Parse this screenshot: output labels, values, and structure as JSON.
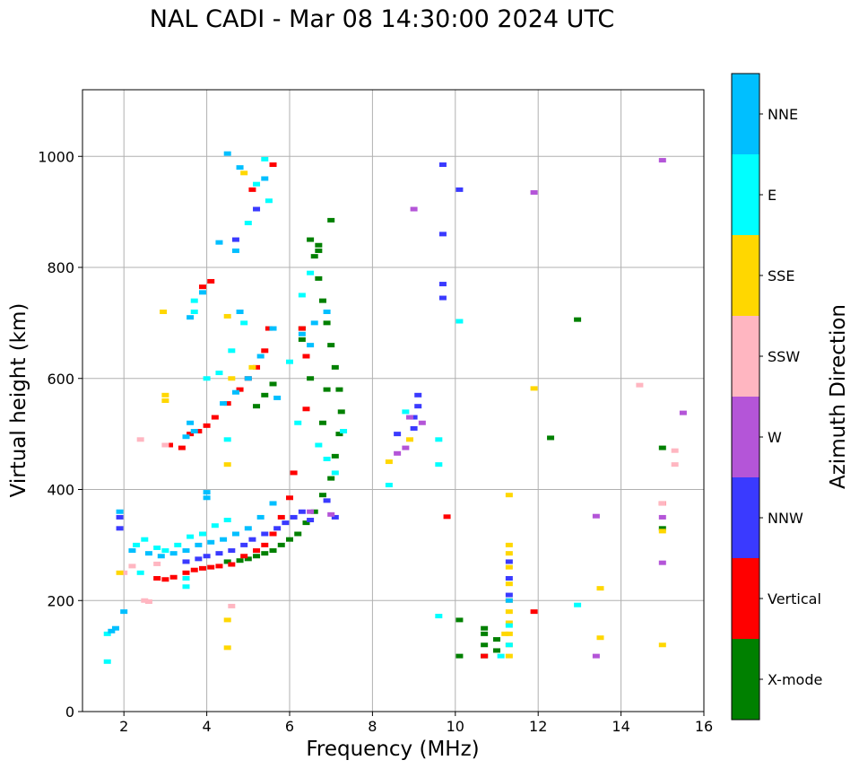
{
  "chart_data": {
    "type": "scatter",
    "title": "NAL CADI - Mar 08 14:30:00 2024 UTC",
    "xlabel": "Frequency (MHz)",
    "ylabel": "Virtual height (km)",
    "xlim": [
      1,
      16
    ],
    "ylim": [
      0,
      1120
    ],
    "xticks": [
      2,
      4,
      6,
      8,
      10,
      12,
      14,
      16
    ],
    "yticks": [
      0,
      200,
      400,
      600,
      800,
      1000
    ],
    "xtick_labels": [
      "2",
      "4",
      "6",
      "8",
      "10",
      "12",
      "14",
      "16"
    ],
    "ytick_labels": [
      "0",
      "200",
      "400",
      "600",
      "800",
      "1000"
    ],
    "grid": true,
    "colorbar": {
      "label": "Azimuth Direction",
      "categories": [
        {
          "name": "X-mode",
          "color": "#008000"
        },
        {
          "name": "Vertical",
          "color": "#ff0000"
        },
        {
          "name": "NNW",
          "color": "#3a3aff"
        },
        {
          "name": "W",
          "color": "#b455d8"
        },
        {
          "name": "SSW",
          "color": "#ffb6c1"
        },
        {
          "name": "SSE",
          "color": "#ffd700"
        },
        {
          "name": "E",
          "color": "#00ffff"
        },
        {
          "name": "NNE",
          "color": "#00bfff"
        }
      ]
    },
    "series": [
      {
        "name": "X-mode",
        "points": [
          [
            4.5,
            270
          ],
          [
            4.8,
            272
          ],
          [
            5.0,
            275
          ],
          [
            5.2,
            280
          ],
          [
            5.4,
            285
          ],
          [
            5.6,
            290
          ],
          [
            5.8,
            300
          ],
          [
            6.0,
            310
          ],
          [
            6.2,
            320
          ],
          [
            6.4,
            340
          ],
          [
            6.6,
            360
          ],
          [
            6.8,
            390
          ],
          [
            7.0,
            420
          ],
          [
            7.1,
            460
          ],
          [
            7.2,
            500
          ],
          [
            7.25,
            540
          ],
          [
            7.2,
            580
          ],
          [
            7.1,
            620
          ],
          [
            7.0,
            660
          ],
          [
            6.9,
            700
          ],
          [
            6.8,
            740
          ],
          [
            6.7,
            780
          ],
          [
            6.6,
            820
          ],
          [
            6.5,
            850
          ],
          [
            6.3,
            690
          ],
          [
            6.3,
            670
          ],
          [
            5.2,
            550
          ],
          [
            5.4,
            570
          ],
          [
            5.6,
            590
          ],
          [
            6.5,
            600
          ],
          [
            6.9,
            580
          ],
          [
            6.8,
            520
          ],
          [
            10.7,
            100
          ],
          [
            10.7,
            120
          ],
          [
            10.7,
            140
          ],
          [
            10.7,
            150
          ],
          [
            11.0,
            110
          ],
          [
            11.0,
            130
          ],
          [
            10.1,
            100
          ],
          [
            10.1,
            165
          ],
          [
            12.3,
            493
          ],
          [
            12.95,
            706
          ],
          [
            15.0,
            475
          ],
          [
            15.0,
            330
          ],
          [
            7.0,
            885
          ],
          [
            6.7,
            840
          ],
          [
            6.7,
            830
          ]
        ]
      },
      {
        "name": "Vertical",
        "points": [
          [
            2.8,
            240
          ],
          [
            3.0,
            238
          ],
          [
            3.2,
            242
          ],
          [
            3.5,
            250
          ],
          [
            3.7,
            255
          ],
          [
            3.9,
            258
          ],
          [
            4.1,
            260
          ],
          [
            4.3,
            262
          ],
          [
            4.6,
            265
          ],
          [
            4.9,
            280
          ],
          [
            5.2,
            290
          ],
          [
            5.4,
            300
          ],
          [
            5.6,
            320
          ],
          [
            5.8,
            350
          ],
          [
            6.0,
            385
          ],
          [
            6.1,
            430
          ],
          [
            3.6,
            500
          ],
          [
            3.8,
            505
          ],
          [
            4.0,
            515
          ],
          [
            4.2,
            530
          ],
          [
            4.5,
            555
          ],
          [
            4.8,
            580
          ],
          [
            5.0,
            600
          ],
          [
            5.2,
            620
          ],
          [
            5.4,
            650
          ],
          [
            5.5,
            690
          ],
          [
            4.1,
            775
          ],
          [
            3.9,
            765
          ],
          [
            3.1,
            480
          ],
          [
            3.4,
            475
          ],
          [
            5.1,
            940
          ],
          [
            6.4,
            545
          ],
          [
            6.4,
            640
          ],
          [
            6.3,
            690
          ],
          [
            10.7,
            100
          ],
          [
            11.9,
            180
          ],
          [
            15.0,
            375
          ],
          [
            9.8,
            351
          ],
          [
            5.6,
            985
          ]
        ]
      },
      {
        "name": "NNW",
        "points": [
          [
            1.9,
            350
          ],
          [
            1.9,
            330
          ],
          [
            3.5,
            270
          ],
          [
            3.8,
            275
          ],
          [
            4.0,
            280
          ],
          [
            4.3,
            285
          ],
          [
            4.6,
            290
          ],
          [
            4.9,
            300
          ],
          [
            5.1,
            310
          ],
          [
            5.4,
            320
          ],
          [
            5.7,
            330
          ],
          [
            5.9,
            340
          ],
          [
            6.1,
            350
          ],
          [
            6.3,
            360
          ],
          [
            6.9,
            380
          ],
          [
            9.1,
            570
          ],
          [
            9.1,
            550
          ],
          [
            9.0,
            530
          ],
          [
            8.6,
            500
          ],
          [
            9.0,
            510
          ],
          [
            10.1,
            940
          ],
          [
            9.7,
            985
          ],
          [
            9.7,
            860
          ],
          [
            9.7,
            770
          ],
          [
            9.7,
            745
          ],
          [
            6.5,
            345
          ],
          [
            7.1,
            350
          ],
          [
            4.7,
            850
          ],
          [
            5.2,
            905
          ],
          [
            11.3,
            210
          ],
          [
            11.3,
            240
          ],
          [
            11.3,
            270
          ]
        ]
      },
      {
        "name": "W",
        "points": [
          [
            9.0,
            905
          ],
          [
            8.9,
            530
          ],
          [
            9.2,
            520
          ],
          [
            8.6,
            465
          ],
          [
            8.8,
            475
          ],
          [
            13.4,
            352
          ],
          [
            13.4,
            100
          ],
          [
            15.0,
            993
          ],
          [
            15.0,
            268
          ],
          [
            15.0,
            350
          ],
          [
            15.5,
            538
          ],
          [
            11.9,
            935
          ],
          [
            7.0,
            355
          ],
          [
            6.5,
            360
          ]
        ]
      },
      {
        "name": "SSW",
        "points": [
          [
            2.5,
            200
          ],
          [
            2.6,
            198
          ],
          [
            2.4,
            490
          ],
          [
            2.0,
            250
          ],
          [
            3.0,
            480
          ],
          [
            14.45,
            588
          ],
          [
            15.3,
            470
          ],
          [
            15.3,
            445
          ],
          [
            15.0,
            375
          ],
          [
            4.6,
            190
          ],
          [
            2.2,
            262
          ],
          [
            2.8,
            266
          ]
        ]
      },
      {
        "name": "SSE",
        "points": [
          [
            3.0,
            570
          ],
          [
            3.0,
            560
          ],
          [
            2.95,
            720
          ],
          [
            4.5,
            445
          ],
          [
            4.5,
            165
          ],
          [
            4.5,
            115
          ],
          [
            4.5,
            712
          ],
          [
            4.6,
            600
          ],
          [
            8.4,
            450
          ],
          [
            8.9,
            490
          ],
          [
            11.3,
            390
          ],
          [
            11.3,
            300
          ],
          [
            11.3,
            285
          ],
          [
            11.3,
            260
          ],
          [
            11.3,
            230
          ],
          [
            11.3,
            200
          ],
          [
            11.3,
            180
          ],
          [
            11.3,
            160
          ],
          [
            11.3,
            140
          ],
          [
            11.3,
            120
          ],
          [
            11.3,
            100
          ],
          [
            11.2,
            140
          ],
          [
            11.9,
            582
          ],
          [
            13.5,
            222
          ],
          [
            13.5,
            133
          ],
          [
            15.0,
            120
          ],
          [
            15.0,
            325
          ],
          [
            1.9,
            250
          ],
          [
            5.1,
            620
          ],
          [
            4.9,
            970
          ]
        ]
      },
      {
        "name": "E",
        "points": [
          [
            1.6,
            140
          ],
          [
            2.3,
            300
          ],
          [
            2.5,
            310
          ],
          [
            2.8,
            295
          ],
          [
            3.0,
            290
          ],
          [
            3.3,
            300
          ],
          [
            3.6,
            315
          ],
          [
            3.9,
            320
          ],
          [
            4.2,
            335
          ],
          [
            4.5,
            345
          ],
          [
            2.4,
            250
          ],
          [
            3.5,
            240
          ],
          [
            3.7,
            720
          ],
          [
            3.7,
            740
          ],
          [
            4.0,
            600
          ],
          [
            4.3,
            610
          ],
          [
            4.6,
            650
          ],
          [
            4.9,
            700
          ],
          [
            5.2,
            950
          ],
          [
            5.4,
            995
          ],
          [
            5.5,
            920
          ],
          [
            6.3,
            750
          ],
          [
            6.5,
            790
          ],
          [
            6.7,
            480
          ],
          [
            6.9,
            455
          ],
          [
            7.1,
            430
          ],
          [
            7.3,
            505
          ],
          [
            6.2,
            520
          ],
          [
            8.4,
            408
          ],
          [
            8.8,
            540
          ],
          [
            9.6,
            490
          ],
          [
            9.6,
            445
          ],
          [
            9.6,
            172
          ],
          [
            10.1,
            703
          ],
          [
            11.3,
            155
          ],
          [
            11.3,
            120
          ],
          [
            11.1,
            100
          ],
          [
            12.95,
            192
          ],
          [
            1.6,
            90
          ],
          [
            3.5,
            225
          ],
          [
            5.0,
            880
          ],
          [
            6.0,
            630
          ],
          [
            4.5,
            490
          ]
        ]
      },
      {
        "name": "NNE",
        "points": [
          [
            1.9,
            360
          ],
          [
            2.2,
            290
          ],
          [
            2.6,
            285
          ],
          [
            2.9,
            280
          ],
          [
            3.2,
            285
          ],
          [
            3.5,
            290
          ],
          [
            3.8,
            300
          ],
          [
            4.1,
            305
          ],
          [
            4.4,
            310
          ],
          [
            4.7,
            320
          ],
          [
            5.0,
            330
          ],
          [
            5.3,
            350
          ],
          [
            5.6,
            375
          ],
          [
            4.0,
            395
          ],
          [
            4.0,
            385
          ],
          [
            3.7,
            505
          ],
          [
            3.6,
            520
          ],
          [
            3.5,
            495
          ],
          [
            4.4,
            555
          ],
          [
            4.7,
            575
          ],
          [
            5.0,
            600
          ],
          [
            5.3,
            640
          ],
          [
            5.6,
            690
          ],
          [
            6.3,
            680
          ],
          [
            6.6,
            700
          ],
          [
            6.9,
            720
          ],
          [
            4.5,
            1005
          ],
          [
            4.8,
            980
          ],
          [
            5.4,
            960
          ],
          [
            4.3,
            845
          ],
          [
            4.7,
            830
          ],
          [
            3.6,
            710
          ],
          [
            1.7,
            145
          ],
          [
            1.8,
            150
          ],
          [
            2.0,
            180
          ],
          [
            11.3,
            200
          ],
          [
            4.8,
            720
          ],
          [
            5.7,
            565
          ],
          [
            6.5,
            660
          ],
          [
            3.9,
            755
          ]
        ]
      }
    ]
  }
}
